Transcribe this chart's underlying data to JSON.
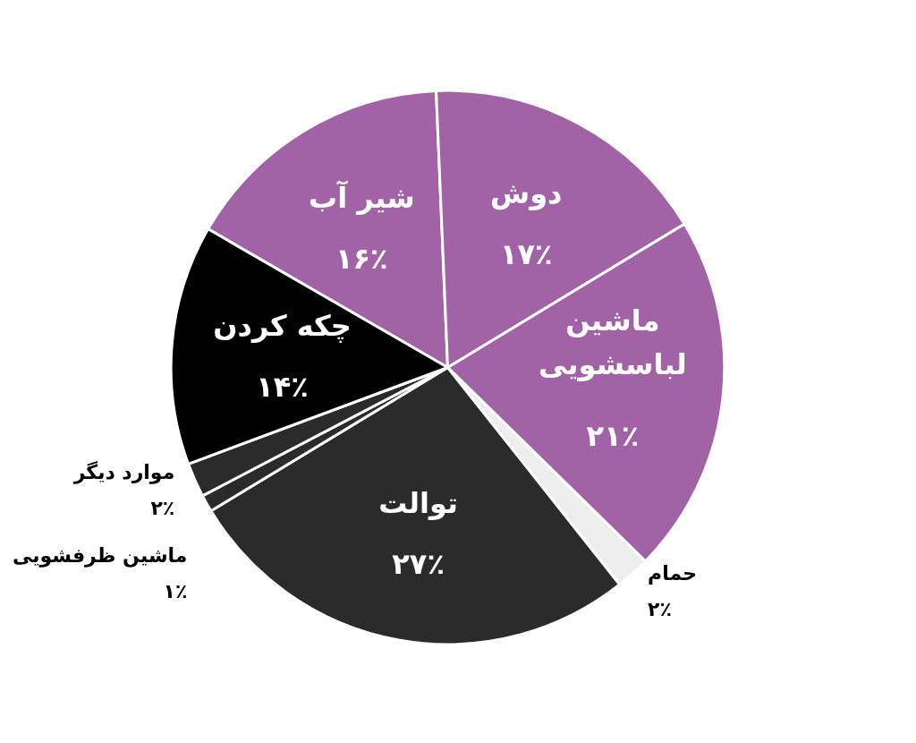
{
  "chart_data": {
    "type": "pie",
    "categories": [
      "شیر آب",
      "دوش",
      "ماشین\nلباسشویی",
      "حمام",
      "توالت",
      "ماشین ظرفشویی",
      "موارد دیگر",
      "چکه کردن"
    ],
    "values": [
      16,
      17,
      21,
      2,
      27,
      1,
      2,
      14
    ],
    "value_labels": [
      "۱۶٪",
      "۱۷٪",
      "۲۱٪",
      "۲٪",
      "۲۷٪",
      "۱٪",
      "۲٪",
      "۱۴٪"
    ],
    "colors": [
      "#a163a6",
      "#a163a6",
      "#a163a6",
      "#eeeeee",
      "#2b2b2b",
      "#2b2b2b",
      "#2b2b2b",
      "#000000"
    ]
  }
}
